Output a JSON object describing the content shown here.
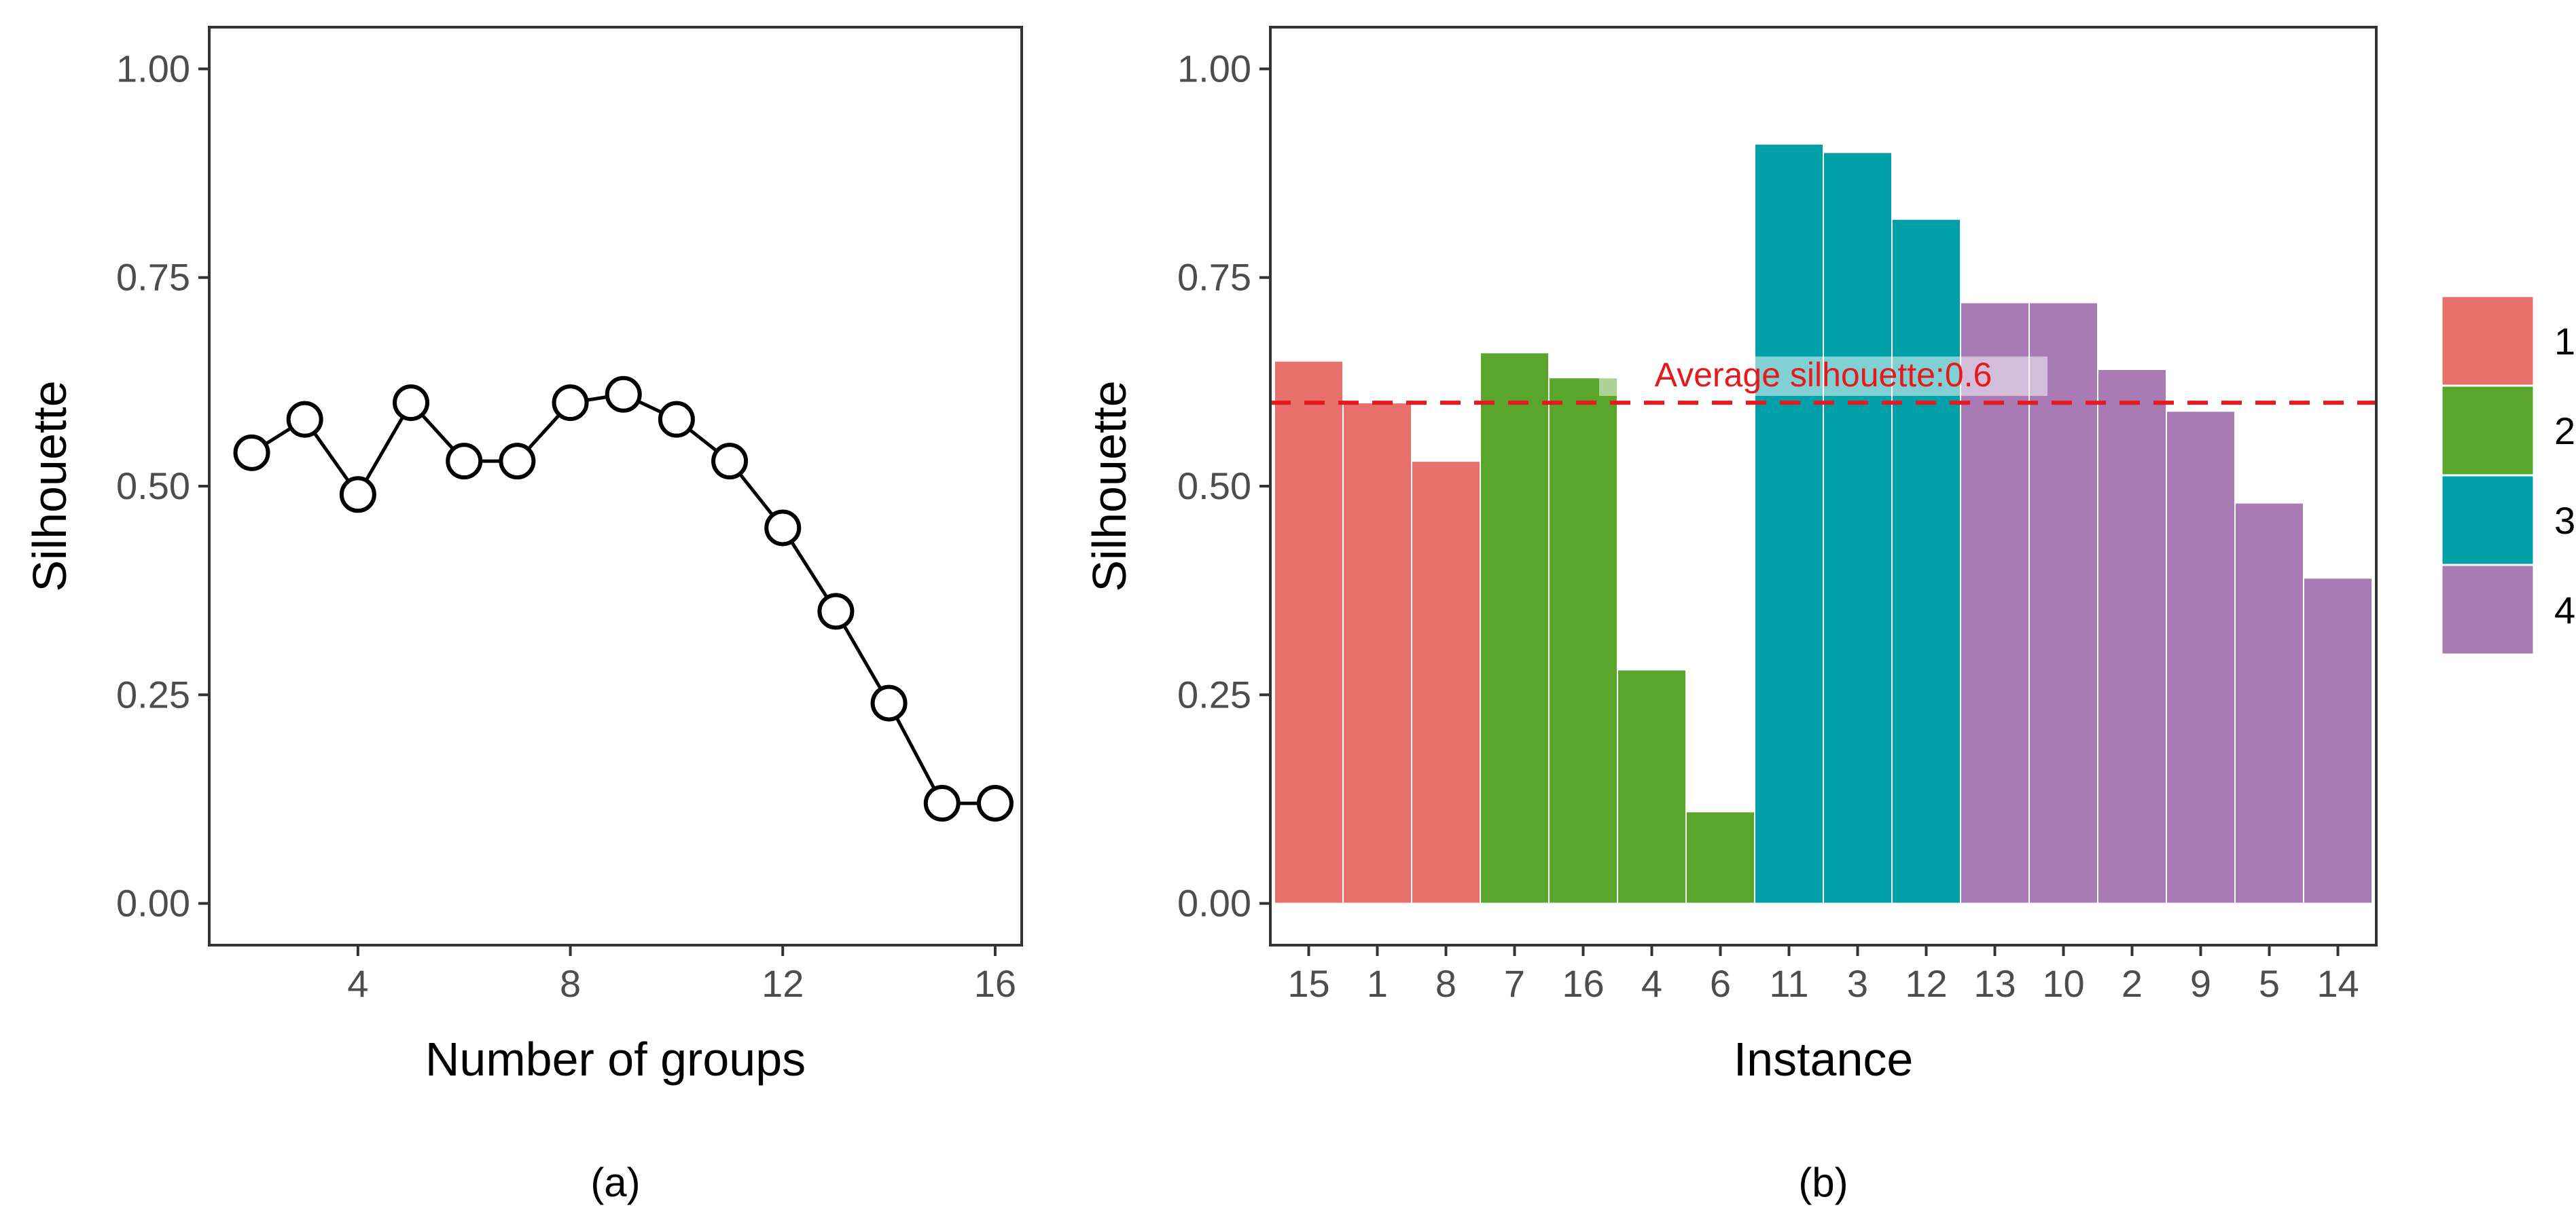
{
  "chart_data": [
    {
      "type": "line",
      "panel_label": "(a)",
      "xlabel": "Number of groups",
      "ylabel": "Silhouette",
      "x": [
        2,
        3,
        4,
        5,
        6,
        7,
        8,
        9,
        10,
        11,
        12,
        13,
        14,
        15,
        16
      ],
      "y": [
        0.54,
        0.58,
        0.49,
        0.6,
        0.53,
        0.53,
        0.6,
        0.61,
        0.58,
        0.53,
        0.45,
        0.35,
        0.24,
        0.12,
        0.12
      ],
      "xlim": [
        1.2,
        16.5
      ],
      "ylim": [
        -0.05,
        1.05
      ],
      "xticks": [
        "4",
        "8",
        "12",
        "16"
      ],
      "yticks": [
        "0.00",
        "0.25",
        "0.50",
        "0.75",
        "1.00"
      ],
      "grid": false,
      "marker": "open-circle"
    },
    {
      "type": "bar",
      "panel_label": "(b)",
      "xlabel": "Instance",
      "ylabel": "Silhouette",
      "categories": [
        "15",
        "1",
        "8",
        "7",
        "16",
        "4",
        "6",
        "11",
        "3",
        "12",
        "13",
        "10",
        "2",
        "9",
        "5",
        "14"
      ],
      "values": [
        0.65,
        0.6,
        0.53,
        0.66,
        0.63,
        0.28,
        0.11,
        0.91,
        0.9,
        0.82,
        0.72,
        0.72,
        0.64,
        0.59,
        0.48,
        0.39
      ],
      "clusters": [
        "1",
        "1",
        "1",
        "2",
        "2",
        "2",
        "2",
        "3",
        "3",
        "3",
        "4",
        "4",
        "4",
        "4",
        "4",
        "4"
      ],
      "ylim": [
        -0.05,
        1.05
      ],
      "yticks": [
        "0.00",
        "0.25",
        "0.50",
        "0.75",
        "1.00"
      ],
      "grid": false,
      "average_line": {
        "value": 0.6,
        "label": "Average silhouette:0.6",
        "color": "#e41a1c",
        "style": "dashed"
      },
      "legend": {
        "placement": "right",
        "entries": [
          {
            "label": "1",
            "color": "#e8706c"
          },
          {
            "label": "2",
            "color": "#5aa52b"
          },
          {
            "label": "3",
            "color": "#00a0a8"
          },
          {
            "label": "4",
            "color": "#a97bb5"
          }
        ]
      }
    }
  ]
}
